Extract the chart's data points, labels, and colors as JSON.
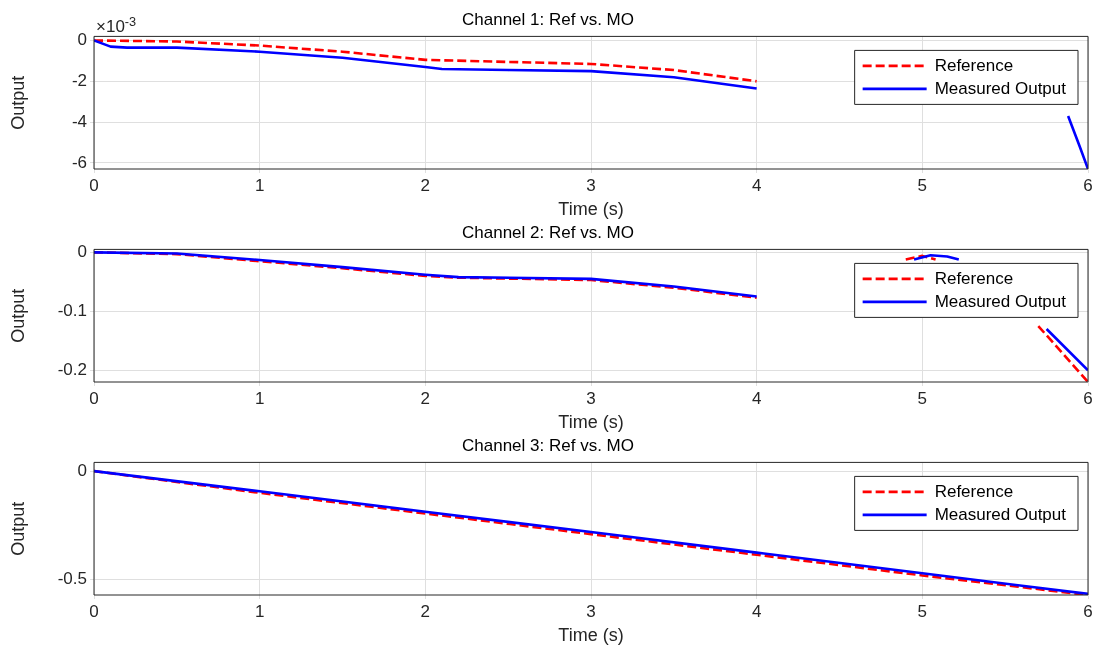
{
  "chart_data": [
    {
      "type": "line",
      "title": "Channel 1: Ref vs. MO",
      "xlabel": "Time (s)",
      "ylabel": "Output",
      "annotations": [
        "×10$^{-3}$"
      ],
      "xlim": [
        0,
        6
      ],
      "xticks": [
        0,
        1,
        2,
        3,
        4,
        5,
        6
      ],
      "ylim": [
        -6.3,
        0.2
      ],
      "yticks": [
        -6,
        -4,
        -2,
        0
      ],
      "grid": true,
      "legend": "top right",
      "marker": "none",
      "series": [
        {
          "name": "Reference",
          "color": "#ff0000",
          "line_style": "dashed",
          "x": [
            0,
            0.5,
            1,
            1.5,
            2,
            2.5,
            3,
            3.5,
            4
          ],
          "values": [
            0,
            -0.05,
            -0.25,
            -0.55,
            -0.95,
            -1.05,
            -1.15,
            -1.45,
            -2.0
          ]
        },
        {
          "name": "Measured Output",
          "color": "#0000ff",
          "line_style": "solid",
          "x": [
            0,
            0.1,
            0.2,
            0.5,
            1,
            1.5,
            2,
            2.1,
            2.5,
            3,
            3.5,
            4,
            4.05,
            5.88,
            5.95,
            6
          ],
          "values": [
            0,
            -0.3,
            -0.35,
            -0.35,
            -0.55,
            -0.85,
            -1.3,
            -1.4,
            -1.45,
            -1.5,
            -1.8,
            -2.35,
            null,
            -3.7,
            -5.2,
            -6.3
          ]
        }
      ]
    },
    {
      "type": "line",
      "title": "Channel 2: Ref vs. MO",
      "xlabel": "Time (s)",
      "ylabel": "Output",
      "xlim": [
        0,
        6
      ],
      "xticks": [
        0,
        1,
        2,
        3,
        4,
        5,
        6
      ],
      "ylim": [
        -0.22,
        0.005
      ],
      "yticks": [
        -0.2,
        -0.1,
        0
      ],
      "grid": true,
      "legend": "top right",
      "marker": "none",
      "series": [
        {
          "name": "Reference",
          "color": "#ff0000",
          "line_style": "dashed",
          "x": [
            0,
            0.5,
            1,
            1.5,
            2,
            2.2,
            3,
            3.5,
            4,
            4.05,
            4.9,
            5.0,
            5.08,
            5.15,
            5.7,
            6
          ],
          "values": [
            0,
            -0.003,
            -0.015,
            -0.027,
            -0.04,
            -0.043,
            -0.047,
            -0.06,
            -0.077,
            null,
            -0.012,
            -0.006,
            -0.012,
            null,
            -0.125,
            -0.22
          ]
        },
        {
          "name": "Measured Output",
          "color": "#0000ff",
          "line_style": "solid",
          "x": [
            0,
            0.5,
            1,
            1.5,
            2,
            2.2,
            3,
            3.5,
            4,
            4.05,
            4.95,
            5.05,
            5.15,
            5.22,
            5.3,
            5.75,
            6
          ],
          "values": [
            0,
            -0.002,
            -0.013,
            -0.025,
            -0.038,
            -0.042,
            -0.045,
            -0.058,
            -0.075,
            null,
            -0.012,
            -0.005,
            -0.007,
            -0.012,
            null,
            -0.13,
            -0.2
          ]
        }
      ]
    },
    {
      "type": "line",
      "title": "Channel 3: Ref vs. MO",
      "xlabel": "Time (s)",
      "ylabel": "Output",
      "xlim": [
        0,
        6
      ],
      "xticks": [
        0,
        1,
        2,
        3,
        4,
        5,
        6
      ],
      "ylim": [
        -0.57,
        0.04
      ],
      "yticks": [
        -0.5,
        0
      ],
      "grid": true,
      "legend": "top right",
      "marker": "none",
      "series": [
        {
          "name": "Reference",
          "color": "#ff0000",
          "line_style": "dashed",
          "x": [
            0,
            1,
            2,
            3,
            4,
            5,
            6
          ],
          "values": [
            0,
            -0.1,
            -0.195,
            -0.29,
            -0.385,
            -0.48,
            -0.57
          ]
        },
        {
          "name": "Measured Output",
          "color": "#0000ff",
          "line_style": "solid",
          "x": [
            0,
            1,
            2,
            3,
            4,
            5,
            6
          ],
          "values": [
            0,
            -0.093,
            -0.187,
            -0.28,
            -0.375,
            -0.47,
            -0.565
          ]
        }
      ]
    }
  ]
}
